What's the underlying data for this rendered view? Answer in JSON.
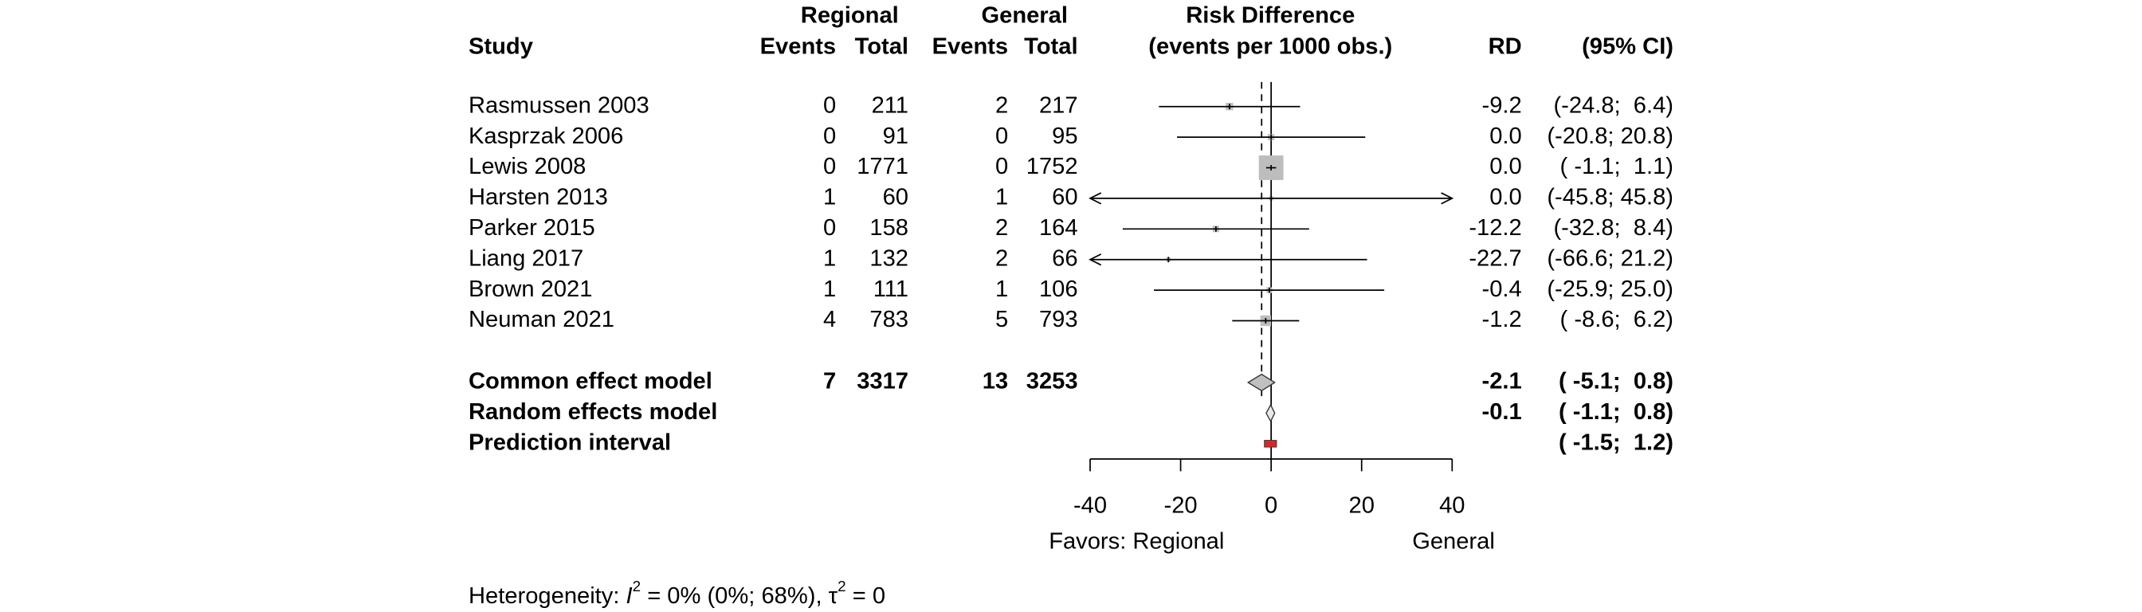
{
  "chart_data": {
    "type": "forest",
    "headers": {
      "study": "Study",
      "regional": "Regional",
      "general": "General",
      "events": "Events",
      "total": "Total",
      "plot_title": "Risk Difference",
      "plot_subtitle": "(events per 1000 obs.)",
      "rd": "RD",
      "ci": "(95% CI)"
    },
    "studies": [
      "Rasmussen 2003",
      "Kasprzak 2006",
      "Lewis 2008",
      "Harsten 2013",
      "Parker 2015",
      "Liang 2017",
      "Brown 2021",
      "Neuman 2021"
    ],
    "regional_events": [
      0,
      0,
      0,
      1,
      0,
      1,
      1,
      4
    ],
    "regional_total": [
      211,
      91,
      1771,
      60,
      158,
      132,
      111,
      783
    ],
    "general_events": [
      2,
      0,
      0,
      1,
      2,
      2,
      1,
      5
    ],
    "general_total": [
      217,
      95,
      1752,
      60,
      164,
      66,
      106,
      793
    ],
    "values": [
      -9.2,
      0,
      0,
      0,
      -12.2,
      -22.7,
      -0.4,
      -1.2
    ],
    "value_labels": [
      "-9.2",
      "0.0",
      "0.0",
      "0.0",
      "-12.2",
      "-22.7",
      "-0.4",
      "-1.2"
    ],
    "ci_lower": [
      -24.8,
      -20.8,
      -1.1,
      -45.8,
      -32.8,
      -66.6,
      -25.9,
      -8.6
    ],
    "ci_upper": [
      6.4,
      20.8,
      1.1,
      45.8,
      8.4,
      21.2,
      25.0,
      6.2
    ],
    "ci_labels": [
      "(-24.8;  6.4)",
      "(-20.8; 20.8)",
      "( -1.1;  1.1)",
      "(-45.8; 45.8)",
      "(-32.8;  8.4)",
      "(-66.6; 21.2)",
      "(-25.9; 25.0)",
      "( -8.6;  6.2)"
    ],
    "summaries": [
      {
        "label": "Common effect model",
        "regional_events": 7,
        "regional_total": 3317,
        "general_events": 13,
        "general_total": 3253,
        "value": -2.1,
        "ci_lower": -5.1,
        "ci_upper": 0.8,
        "ci_label": "( -5.1;  0.8)"
      },
      {
        "label": "Random effects model",
        "value": -0.1,
        "ci_lower": -1.1,
        "ci_upper": 0.8,
        "ci_label": "( -1.1;  0.8)"
      },
      {
        "label": "Prediction interval",
        "ci_lower": -1.5,
        "ci_upper": 1.2,
        "ci_label": "( -1.5;  1.2)"
      }
    ],
    "xlim": [
      -40,
      40
    ],
    "xticks": [
      -40,
      -20,
      0,
      20,
      40
    ],
    "x_label_left": "Favors: Regional",
    "x_label_right": "General",
    "heterogeneity": {
      "prefix": "Heterogeneity: ",
      "i2_symbol": "I",
      "i2_exp": "2",
      "i2_text": " = 0% (0%; 68%), ",
      "tau_symbol": "τ",
      "tau_exp": "2",
      "tau_text": " = 0"
    }
  }
}
